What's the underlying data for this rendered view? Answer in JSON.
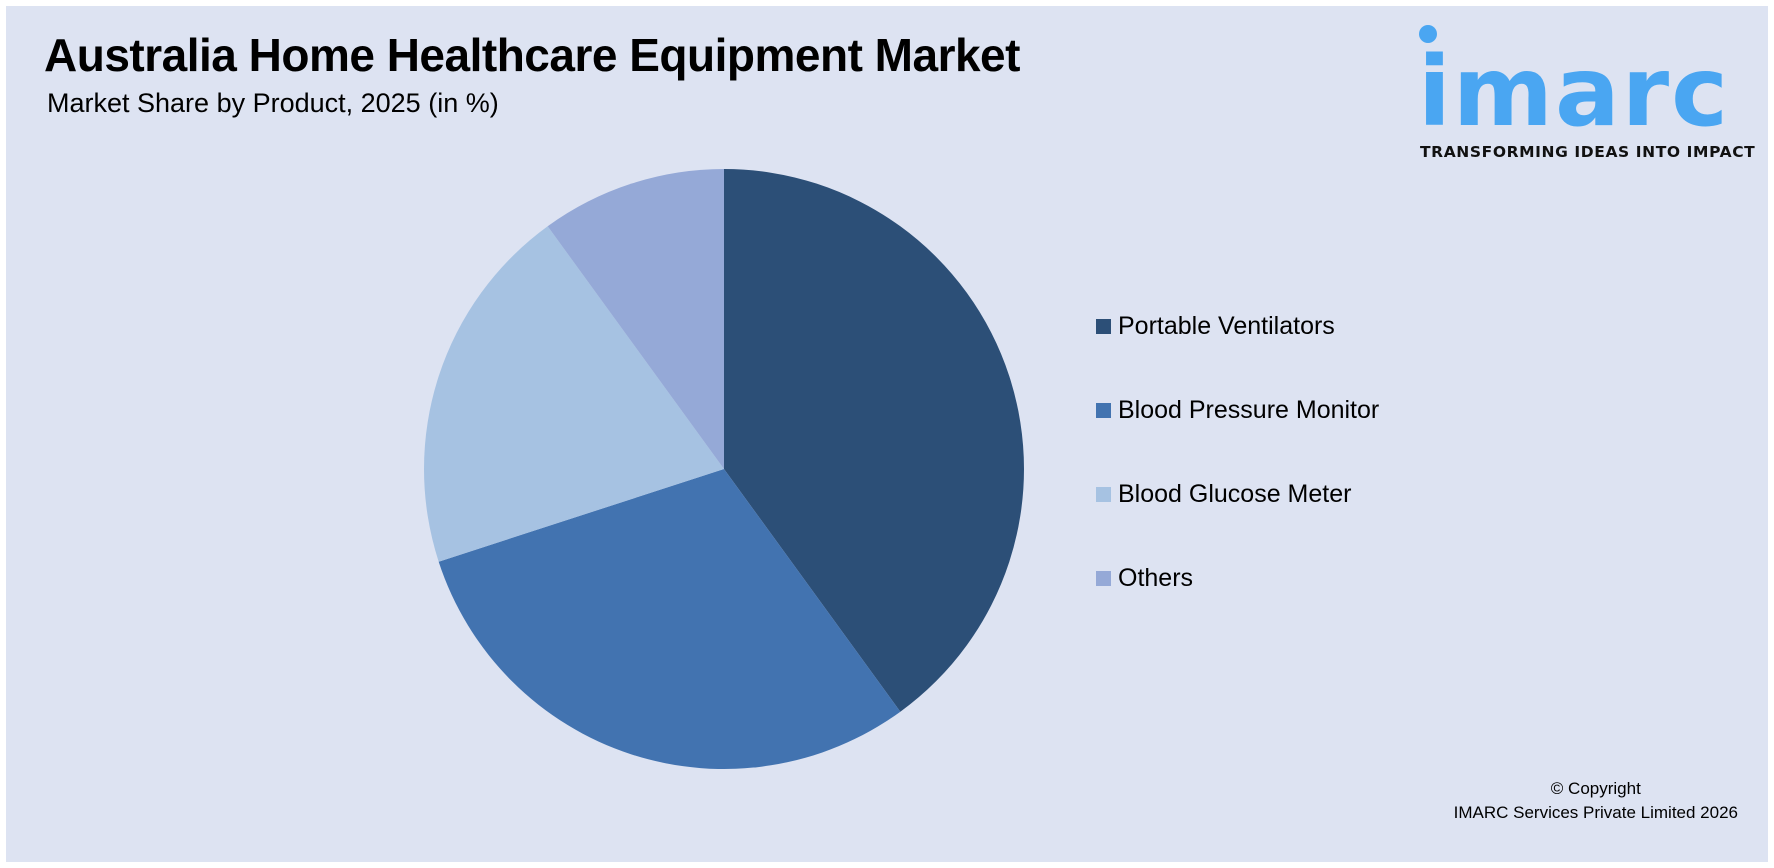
{
  "header": {
    "title": "Australia Home Healthcare Equipment Market",
    "subtitle": "Market Share by Product, 2025 (in %)"
  },
  "logo": {
    "wordmark": "imarc",
    "tagline": "TRANSFORMING IDEAS INTO IMPACT",
    "color": "#4aa6f2"
  },
  "legend": {
    "items": [
      {
        "label": "Portable Ventilators",
        "color": "#2c4f77"
      },
      {
        "label": "Blood Pressure Monitor",
        "color": "#4273b0"
      },
      {
        "label": "Blood Glucose Meter",
        "color": "#a6c2e2"
      },
      {
        "label": "Others",
        "color": "#95a9d7"
      }
    ]
  },
  "footer": {
    "copyright_line1": "© Copyright",
    "copyright_line2": "IMARC Services Private Limited 2026"
  },
  "chart_data": {
    "type": "pie",
    "title": "Australia Home Healthcare Equipment Market",
    "subtitle": "Market Share by Product, 2025 (in %)",
    "categories": [
      "Portable Ventilators",
      "Blood Pressure Monitor",
      "Blood Glucose Meter",
      "Others"
    ],
    "values": [
      40,
      30,
      20,
      10
    ],
    "colors": [
      "#2c4f77",
      "#4273b0",
      "#a6c2e2",
      "#95a9d7"
    ],
    "start_angle": "12 o'clock, clockwise",
    "legend_position": "right",
    "data_labels": false
  }
}
